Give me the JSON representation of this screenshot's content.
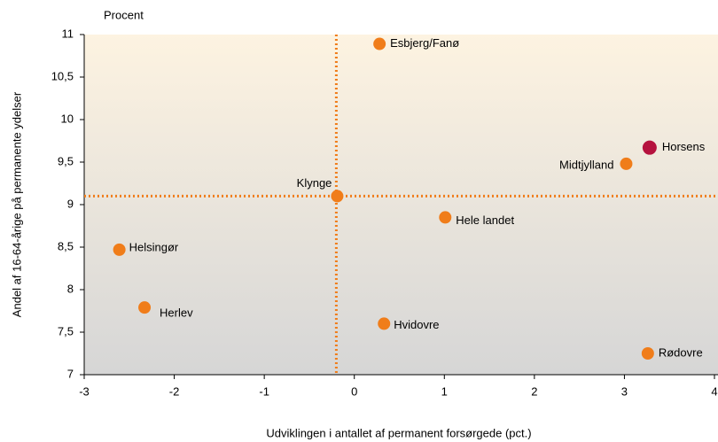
{
  "chart_data": {
    "type": "scatter",
    "unit_label": "Procent",
    "x_label": "Udviklingen i antallet af permanent forsørgede (pct.)",
    "y_label": "Andel af 16-64-årige på permanente ydelser",
    "points": [
      "Esbjerg/Fanø",
      "Horsens",
      "Midtjylland",
      "Klynge",
      "Hele landet",
      "Helsingør",
      "Herlev",
      "Hvidovre",
      "Rødovre"
    ],
    "x": [
      0.28,
      3.28,
      3.02,
      -0.19,
      1.01,
      -2.61,
      -2.33,
      0.33,
      3.26
    ],
    "y": [
      10.89,
      9.67,
      9.48,
      9.1,
      8.85,
      8.47,
      7.79,
      7.6,
      7.25
    ],
    "colors": [
      "#f07d1a",
      "#b5123e",
      "#f07d1a",
      "#f07d1a",
      "#f07d1a",
      "#f07d1a",
      "#f07d1a",
      "#f07d1a",
      "#f07d1a"
    ],
    "reference_lines": {
      "x": -0.2,
      "y": 9.1,
      "color": "#f07d1a"
    },
    "xlim": [
      -3,
      4
    ],
    "xticks": [
      -3,
      -2,
      -1,
      0,
      1,
      2,
      3,
      4
    ],
    "ylim": [
      7,
      11
    ],
    "yticks": [
      7,
      {
        "value": 7.5,
        "label": "7,5"
      },
      8,
      {
        "value": 8.5,
        "label": "8,5"
      },
      9,
      {
        "value": 9.5,
        "label": "9,5"
      },
      10,
      {
        "value": 10.5,
        "label": "10,5"
      },
      11
    ]
  }
}
